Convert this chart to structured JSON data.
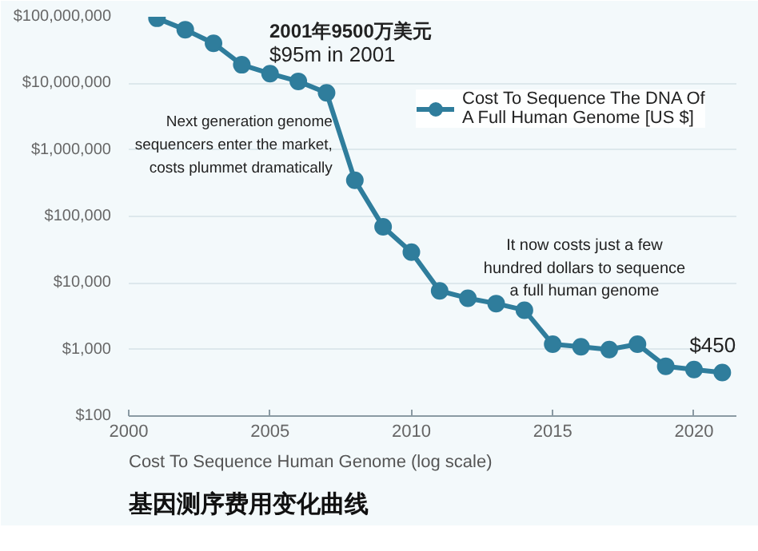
{
  "chart_data": {
    "type": "line",
    "title": "基因测序费用变化曲线",
    "subtitle": "Cost To Sequence Human Genome (log scale)",
    "x": [
      2001,
      2002,
      2003,
      2004,
      2005,
      2006,
      2007,
      2008,
      2009,
      2010,
      2011,
      2012,
      2013,
      2014,
      2015,
      2016,
      2017,
      2018,
      2019,
      2020,
      2021
    ],
    "series": [
      {
        "name": "Cost To Sequence The DNA Of A Full Human Genome [US $]",
        "color": "#2f7d9c",
        "values": [
          95000000,
          64000000,
          40000000,
          19000000,
          14000000,
          10700000,
          7200000,
          350000,
          70000,
          29000,
          7600,
          5900,
          4900,
          3900,
          1200,
          1100,
          1000,
          1200,
          560,
          500,
          450
        ]
      }
    ],
    "log": "y",
    "xlim": [
      2000,
      2021.5
    ],
    "xticks": [
      2000,
      2005,
      2010,
      2015,
      2020
    ],
    "ylim": [
      100,
      100000000
    ],
    "yticks": [
      {
        "value": 100,
        "label": "$100"
      },
      {
        "value": 1000,
        "label": "$1,000"
      },
      {
        "value": 10000,
        "label": "$10,000"
      },
      {
        "value": 100000,
        "label": "$100,000"
      },
      {
        "value": 1000000,
        "label": "$1,000,000"
      },
      {
        "value": 10000000,
        "label": "$10,000,000"
      },
      {
        "value": 100000000,
        "label": "$100,000,000"
      }
    ],
    "grid": "y",
    "legend": "top right",
    "marker": "circle",
    "line_style": "solid",
    "annotations": [
      "2001年9500万美元",
      "$95m in 2001",
      {
        "text": "Next generation genome\nsequencers enter the market,\ncosts plummet dramatically",
        "x": 2008,
        "y": 350000
      },
      "It now costs just a few\nhundred dollars to sequence\na full human genome",
      {
        "text": "$450",
        "x": 2021,
        "y": 450
      }
    ]
  }
}
